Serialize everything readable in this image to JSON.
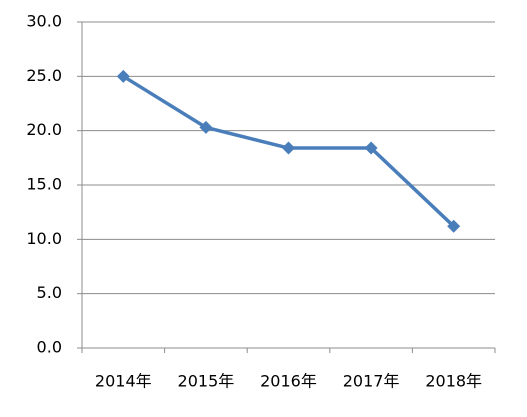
{
  "chart_data": {
    "type": "line",
    "categories": [
      "2014年",
      "2015年",
      "2016年",
      "2017年",
      "2018年"
    ],
    "values": [
      25.0,
      20.3,
      18.4,
      18.4,
      11.2
    ],
    "color": "#4a7ebb",
    "ylim": [
      0,
      30
    ],
    "yticks": [
      {
        "value": 0,
        "label": "0.0"
      },
      {
        "value": 5,
        "label": "5.0"
      },
      {
        "value": 10,
        "label": "10.0"
      },
      {
        "value": 15,
        "label": "15.0"
      },
      {
        "value": 20,
        "label": "20.0"
      },
      {
        "value": 25,
        "label": "25.0"
      },
      {
        "value": 30,
        "label": "30.0"
      }
    ],
    "grid": true
  }
}
